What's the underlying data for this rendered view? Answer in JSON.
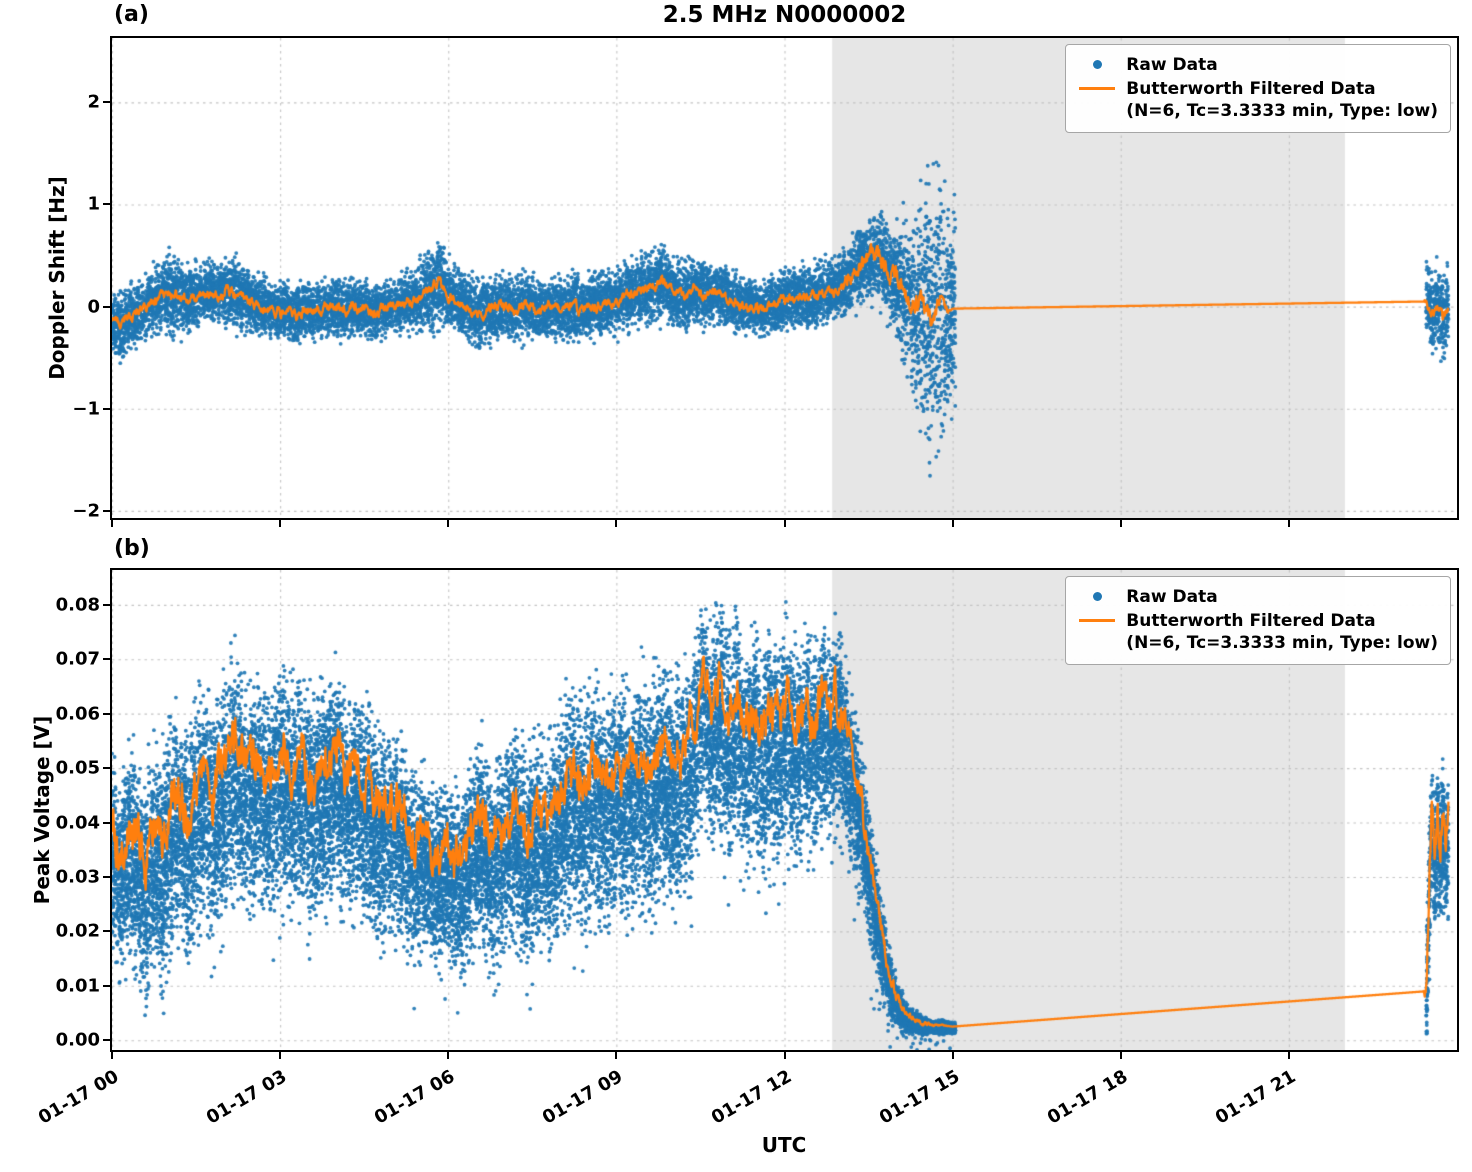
{
  "chart_data": {
    "type": "scatter+line",
    "title": "2.5 MHz N0000002",
    "xlabel": "UTC",
    "seed": 1337,
    "colors": {
      "raw": "#1f77b4",
      "filtered": "#ff7f0e",
      "band": "#e6e6e6",
      "grid": "#c3c3c3",
      "spine": "#000000"
    },
    "legend": {
      "raw_label": "Raw Data",
      "filtered_label": "Butterworth Filtered Data",
      "filtered_sub": "(N=6, Tc=3.3333 min, Type: low)"
    },
    "x_axis": {
      "lim": [
        0,
        24
      ],
      "ticks": [
        {
          "v": 0,
          "label": "01-17 00"
        },
        {
          "v": 3,
          "label": "01-17 03"
        },
        {
          "v": 6,
          "label": "01-17 06"
        },
        {
          "v": 9,
          "label": "01-17 09"
        },
        {
          "v": 12,
          "label": "01-17 12"
        },
        {
          "v": 15,
          "label": "01-17 15"
        },
        {
          "v": 18,
          "label": "01-17 18"
        },
        {
          "v": 21,
          "label": "01-17 21"
        }
      ]
    },
    "band_x": [
      12.85,
      22.0
    ],
    "panels": [
      {
        "label": "(a)",
        "ylabel": "Doppler Shift [Hz]",
        "ylim": [
          -2.07,
          2.63
        ],
        "yticks": [
          {
            "v": 2,
            "label": "2"
          },
          {
            "v": 1,
            "label": "1"
          },
          {
            "v": 0,
            "label": "0"
          },
          {
            "v": -1,
            "label": "−1"
          },
          {
            "v": -2,
            "label": "−2"
          }
        ],
        "marker_r": 1.9,
        "spread_mult": 1.3,
        "skew": 0,
        "raw_segments": [
          {
            "t0": 0.0,
            "t1": 15.05,
            "per_hour": 850
          },
          {
            "t0": 23.45,
            "t1": 23.85,
            "per_hour": 850
          }
        ],
        "filtered": [
          [
            0,
            -0.12
          ],
          [
            0.15,
            -0.22
          ],
          [
            0.3,
            -0.12
          ],
          [
            0.5,
            -0.05
          ],
          [
            0.7,
            0.02
          ],
          [
            0.9,
            0.1
          ],
          [
            1.1,
            0.13
          ],
          [
            1.3,
            0.07
          ],
          [
            1.5,
            0.1
          ],
          [
            1.7,
            0.15
          ],
          [
            1.9,
            0.12
          ],
          [
            2.1,
            0.16
          ],
          [
            2.3,
            0.1
          ],
          [
            2.5,
            0.05
          ],
          [
            2.7,
            -0.02
          ],
          [
            2.9,
            -0.05
          ],
          [
            3.1,
            -0.03
          ],
          [
            3.3,
            -0.08
          ],
          [
            3.5,
            -0.02
          ],
          [
            3.7,
            -0.05
          ],
          [
            3.9,
            0.0
          ],
          [
            4.1,
            -0.04
          ],
          [
            4.3,
            0.0
          ],
          [
            4.5,
            -0.03
          ],
          [
            4.7,
            -0.06
          ],
          [
            4.9,
            -0.02
          ],
          [
            5.1,
            0.02
          ],
          [
            5.3,
            0.05
          ],
          [
            5.5,
            0.1
          ],
          [
            5.7,
            0.18
          ],
          [
            5.85,
            0.25
          ],
          [
            6.0,
            0.12
          ],
          [
            6.2,
            0.05
          ],
          [
            6.4,
            -0.03
          ],
          [
            6.6,
            -0.06
          ],
          [
            6.8,
            -0.03
          ],
          [
            7.0,
            0.0
          ],
          [
            7.2,
            -0.04
          ],
          [
            7.4,
            0.0
          ],
          [
            7.6,
            -0.03
          ],
          [
            7.8,
            0.0
          ],
          [
            8.0,
            -0.02
          ],
          [
            8.2,
            0.0
          ],
          [
            8.4,
            -0.03
          ],
          [
            8.6,
            0.0
          ],
          [
            8.8,
            0.03
          ],
          [
            9.0,
            0.06
          ],
          [
            9.2,
            0.1
          ],
          [
            9.4,
            0.15
          ],
          [
            9.6,
            0.2
          ],
          [
            9.8,
            0.25
          ],
          [
            10.0,
            0.15
          ],
          [
            10.2,
            0.1
          ],
          [
            10.4,
            0.16
          ],
          [
            10.6,
            0.1
          ],
          [
            10.8,
            0.14
          ],
          [
            11.0,
            0.08
          ],
          [
            11.2,
            0.03
          ],
          [
            11.4,
            0.0
          ],
          [
            11.6,
            -0.03
          ],
          [
            11.8,
            0.02
          ],
          [
            12.0,
            0.06
          ],
          [
            12.2,
            0.1
          ],
          [
            12.4,
            0.08
          ],
          [
            12.6,
            0.1
          ],
          [
            12.8,
            0.13
          ],
          [
            13.0,
            0.2
          ],
          [
            13.2,
            0.3
          ],
          [
            13.4,
            0.42
          ],
          [
            13.6,
            0.5
          ],
          [
            13.75,
            0.45
          ],
          [
            13.9,
            0.3
          ],
          [
            14.05,
            0.2
          ],
          [
            14.2,
            0.1
          ],
          [
            14.35,
            0.05
          ],
          [
            14.5,
            -0.05
          ],
          [
            14.65,
            -0.12
          ],
          [
            14.8,
            0.08
          ],
          [
            14.9,
            -0.05
          ],
          [
            15.0,
            -0.02
          ],
          [
            23.45,
            0.05
          ],
          [
            23.55,
            -0.08
          ],
          [
            23.65,
            0.02
          ],
          [
            23.75,
            -0.12
          ],
          [
            23.85,
            0.0
          ]
        ],
        "spread": [
          [
            0,
            0.3
          ],
          [
            0.3,
            0.35
          ],
          [
            0.7,
            0.3
          ],
          [
            1.0,
            0.42
          ],
          [
            1.4,
            0.32
          ],
          [
            1.8,
            0.3
          ],
          [
            2.2,
            0.34
          ],
          [
            2.6,
            0.3
          ],
          [
            3.0,
            0.28
          ],
          [
            3.4,
            0.3
          ],
          [
            3.8,
            0.26
          ],
          [
            4.2,
            0.3
          ],
          [
            4.6,
            0.28
          ],
          [
            5.0,
            0.26
          ],
          [
            5.4,
            0.3
          ],
          [
            5.8,
            0.45
          ],
          [
            6.1,
            0.32
          ],
          [
            6.5,
            0.38
          ],
          [
            6.9,
            0.3
          ],
          [
            7.3,
            0.34
          ],
          [
            7.7,
            0.28
          ],
          [
            8.1,
            0.33
          ],
          [
            8.5,
            0.3
          ],
          [
            8.9,
            0.32
          ],
          [
            9.3,
            0.35
          ],
          [
            9.7,
            0.38
          ],
          [
            10.1,
            0.34
          ],
          [
            10.5,
            0.32
          ],
          [
            10.9,
            0.3
          ],
          [
            11.3,
            0.28
          ],
          [
            11.7,
            0.26
          ],
          [
            12.1,
            0.3
          ],
          [
            12.5,
            0.32
          ],
          [
            12.9,
            0.3
          ],
          [
            13.3,
            0.38
          ],
          [
            13.7,
            0.42
          ],
          [
            14.0,
            0.55
          ],
          [
            14.2,
            0.8
          ],
          [
            14.45,
            1.2
          ],
          [
            14.7,
            1.5
          ],
          [
            14.85,
            1.3
          ],
          [
            15.0,
            1.0
          ],
          [
            23.45,
            0.4
          ],
          [
            23.85,
            0.42
          ]
        ],
        "jitter": [
          [
            0,
            0.05
          ],
          [
            12.9,
            0.05
          ],
          [
            13.3,
            0.08
          ],
          [
            14.0,
            0.1
          ],
          [
            14.6,
            0.12
          ],
          [
            15.0,
            0
          ],
          [
            23.4,
            0
          ],
          [
            23.45,
            0.05
          ],
          [
            23.85,
            0.05
          ]
        ]
      },
      {
        "label": "(b)",
        "ylabel": "Peak Voltage [V]",
        "ylim": [
          -0.0018,
          0.0864
        ],
        "yticks": [
          {
            "v": 0.08,
            "label": "0.08"
          },
          {
            "v": 0.07,
            "label": "0.07"
          },
          {
            "v": 0.06,
            "label": "0.06"
          },
          {
            "v": 0.05,
            "label": "0.05"
          },
          {
            "v": 0.04,
            "label": "0.04"
          },
          {
            "v": 0.03,
            "label": "0.03"
          },
          {
            "v": 0.02,
            "label": "0.02"
          },
          {
            "v": 0.01,
            "label": "0.01"
          },
          {
            "v": 0.0,
            "label": "0.00"
          }
        ],
        "marker_r": 1.9,
        "spread_mult": 1.4,
        "skew": -0.3,
        "low_tail": {
          "prob": 0.05,
          "max": 0.012
        },
        "raw_segments": [
          {
            "t0": 0.0,
            "t1": 15.05,
            "per_hour": 1450
          },
          {
            "t0": 23.45,
            "t1": 23.85,
            "per_hour": 1450
          }
        ],
        "filtered": [
          [
            0,
            0.04
          ],
          [
            0.15,
            0.034
          ],
          [
            0.3,
            0.042
          ],
          [
            0.45,
            0.037
          ],
          [
            0.6,
            0.033
          ],
          [
            0.75,
            0.04
          ],
          [
            0.9,
            0.036
          ],
          [
            1.05,
            0.044
          ],
          [
            1.2,
            0.046
          ],
          [
            1.35,
            0.042
          ],
          [
            1.5,
            0.047
          ],
          [
            1.65,
            0.05
          ],
          [
            1.8,
            0.045
          ],
          [
            2.0,
            0.051
          ],
          [
            2.2,
            0.055
          ],
          [
            2.4,
            0.05
          ],
          [
            2.6,
            0.053
          ],
          [
            2.8,
            0.049
          ],
          [
            3.0,
            0.053
          ],
          [
            3.2,
            0.05
          ],
          [
            3.4,
            0.052
          ],
          [
            3.6,
            0.047
          ],
          [
            3.8,
            0.051
          ],
          [
            4.0,
            0.053
          ],
          [
            4.2,
            0.048
          ],
          [
            4.4,
            0.05
          ],
          [
            4.6,
            0.046
          ],
          [
            4.8,
            0.042
          ],
          [
            5.0,
            0.045
          ],
          [
            5.2,
            0.04
          ],
          [
            5.4,
            0.036
          ],
          [
            5.6,
            0.038
          ],
          [
            5.8,
            0.034
          ],
          [
            6.0,
            0.036
          ],
          [
            6.2,
            0.033
          ],
          [
            6.4,
            0.038
          ],
          [
            6.6,
            0.042
          ],
          [
            6.8,
            0.036
          ],
          [
            7.0,
            0.04
          ],
          [
            7.2,
            0.043
          ],
          [
            7.4,
            0.038
          ],
          [
            7.6,
            0.043
          ],
          [
            7.8,
            0.04
          ],
          [
            8.0,
            0.046
          ],
          [
            8.2,
            0.05
          ],
          [
            8.4,
            0.046
          ],
          [
            8.6,
            0.051
          ],
          [
            8.8,
            0.047
          ],
          [
            9.0,
            0.051
          ],
          [
            9.2,
            0.048
          ],
          [
            9.4,
            0.053
          ],
          [
            9.6,
            0.049
          ],
          [
            9.8,
            0.055
          ],
          [
            10.0,
            0.051
          ],
          [
            10.2,
            0.054
          ],
          [
            10.4,
            0.058
          ],
          [
            10.55,
            0.068
          ],
          [
            10.7,
            0.06
          ],
          [
            10.85,
            0.067
          ],
          [
            11.0,
            0.058
          ],
          [
            11.15,
            0.064
          ],
          [
            11.3,
            0.056
          ],
          [
            11.45,
            0.062
          ],
          [
            11.6,
            0.055
          ],
          [
            11.75,
            0.061
          ],
          [
            11.9,
            0.057
          ],
          [
            12.05,
            0.063
          ],
          [
            12.2,
            0.057
          ],
          [
            12.35,
            0.062
          ],
          [
            12.5,
            0.058
          ],
          [
            12.65,
            0.064
          ],
          [
            12.8,
            0.06
          ],
          [
            12.95,
            0.063
          ],
          [
            13.1,
            0.056
          ],
          [
            13.25,
            0.05
          ],
          [
            13.4,
            0.042
          ],
          [
            13.55,
            0.032
          ],
          [
            13.7,
            0.022
          ],
          [
            13.85,
            0.013
          ],
          [
            14.0,
            0.008
          ],
          [
            14.15,
            0.005
          ],
          [
            14.3,
            0.004
          ],
          [
            14.5,
            0.003
          ],
          [
            14.75,
            0.0027
          ],
          [
            15.0,
            0.0025
          ],
          [
            23.45,
            0.009
          ],
          [
            23.5,
            0.028
          ],
          [
            23.55,
            0.044
          ],
          [
            23.6,
            0.034
          ],
          [
            23.65,
            0.042
          ],
          [
            23.7,
            0.036
          ],
          [
            23.75,
            0.043
          ],
          [
            23.8,
            0.037
          ],
          [
            23.85,
            0.041
          ]
        ],
        "spread": [
          [
            0,
            0.017
          ],
          [
            1,
            0.019
          ],
          [
            2,
            0.02
          ],
          [
            3,
            0.02
          ],
          [
            4,
            0.019
          ],
          [
            5,
            0.017
          ],
          [
            5.7,
            0.015
          ],
          [
            6.3,
            0.016
          ],
          [
            7,
            0.018
          ],
          [
            8,
            0.019
          ],
          [
            9,
            0.02
          ],
          [
            10,
            0.02
          ],
          [
            10.6,
            0.018
          ],
          [
            11.2,
            0.019
          ],
          [
            12,
            0.019
          ],
          [
            12.8,
            0.018
          ],
          [
            13.2,
            0.015
          ],
          [
            13.6,
            0.01
          ],
          [
            14.0,
            0.004
          ],
          [
            14.3,
            0.002
          ],
          [
            14.6,
            0.0012
          ],
          [
            15.0,
            0.001
          ],
          [
            23.45,
            0.011
          ],
          [
            23.85,
            0.011
          ]
        ],
        "jitter": [
          [
            0,
            0.004
          ],
          [
            12.9,
            0.004
          ],
          [
            13.3,
            0.003
          ],
          [
            13.8,
            0.0015
          ],
          [
            14.3,
            0.0005
          ],
          [
            15.0,
            0
          ],
          [
            23.4,
            0
          ],
          [
            23.45,
            0.003
          ],
          [
            23.85,
            0.003
          ]
        ]
      }
    ]
  }
}
